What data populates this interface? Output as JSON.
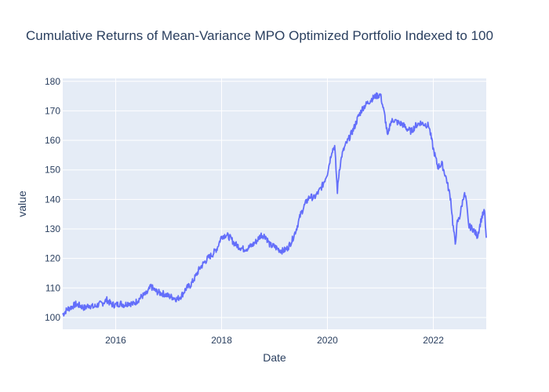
{
  "chart_data": {
    "type": "line",
    "title": "Cumulative Returns of Mean-Variance MPO Optimized Portfolio Indexed to 100",
    "xlabel": "Date",
    "ylabel": "value",
    "xlim": [
      "2015-01-01",
      "2023-01-01"
    ],
    "ylim": [
      96,
      181
    ],
    "x_ticks": [
      "2016",
      "2018",
      "2020",
      "2022"
    ],
    "y_ticks": [
      100,
      110,
      120,
      130,
      140,
      150,
      160,
      170,
      180
    ],
    "grid": true,
    "legend": "none",
    "colors": {
      "plot_bg": "#e5ecf6",
      "grid": "#ffffff",
      "line": "#636efa",
      "text": "#2a3f5f"
    },
    "series": [
      {
        "x": [
          "2015-01-01",
          "2015-02-01",
          "2015-03-01",
          "2015-04-01",
          "2015-05-01",
          "2015-06-01",
          "2015-07-01",
          "2015-08-01",
          "2015-09-01",
          "2015-10-01",
          "2015-11-01",
          "2015-12-01",
          "2016-01-01",
          "2016-02-01",
          "2016-03-01",
          "2016-04-01",
          "2016-05-01",
          "2016-06-01",
          "2016-07-01",
          "2016-08-01",
          "2016-09-01",
          "2016-10-01",
          "2016-11-01",
          "2016-12-01",
          "2017-01-01",
          "2017-02-01",
          "2017-03-01",
          "2017-04-01",
          "2017-05-01",
          "2017-06-01",
          "2017-07-01",
          "2017-08-01",
          "2017-09-01",
          "2017-10-01",
          "2017-11-01",
          "2017-12-01",
          "2018-01-01",
          "2018-02-01",
          "2018-03-01",
          "2018-04-01",
          "2018-05-01",
          "2018-06-01",
          "2018-07-01",
          "2018-08-01",
          "2018-09-01",
          "2018-10-01",
          "2018-11-01",
          "2018-12-01",
          "2019-01-01",
          "2019-02-01",
          "2019-03-01",
          "2019-04-01",
          "2019-05-01",
          "2019-06-01",
          "2019-07-01",
          "2019-08-01",
          "2019-09-01",
          "2019-10-01",
          "2019-11-01",
          "2019-12-01",
          "2020-01-01",
          "2020-02-01",
          "2020-02-20",
          "2020-03-10",
          "2020-03-23",
          "2020-04-10",
          "2020-05-01",
          "2020-06-01",
          "2020-07-01",
          "2020-08-01",
          "2020-09-01",
          "2020-10-01",
          "2020-11-01",
          "2020-12-01",
          "2021-01-01",
          "2021-02-01",
          "2021-02-20",
          "2021-03-10",
          "2021-04-01",
          "2021-05-01",
          "2021-06-01",
          "2021-07-01",
          "2021-08-01",
          "2021-09-01",
          "2021-10-01",
          "2021-11-01",
          "2021-12-01",
          "2022-01-01",
          "2022-02-01",
          "2022-03-01",
          "2022-04-01",
          "2022-05-01",
          "2022-05-15",
          "2022-06-01",
          "2022-06-15",
          "2022-07-01",
          "2022-08-01",
          "2022-08-15",
          "2022-09-01",
          "2022-10-01",
          "2022-11-01",
          "2022-12-01",
          "2022-12-20",
          "2023-01-01"
        ],
        "y": [
          101,
          102.8,
          103.5,
          104.5,
          104,
          103.2,
          104.2,
          103.5,
          104.3,
          104.8,
          106,
          104.5,
          104.2,
          104.8,
          104.3,
          105,
          104.5,
          105.8,
          107.2,
          108,
          110.5,
          109,
          108.3,
          108,
          107.2,
          106.8,
          106.2,
          107.5,
          109.8,
          111,
          113.5,
          116.5,
          118.5,
          120.2,
          121.5,
          123.5,
          127.5,
          128,
          127,
          125,
          124,
          123.2,
          123.5,
          124.5,
          126,
          128,
          127.5,
          124.5,
          124,
          123,
          122.5,
          123.5,
          126,
          130,
          135,
          138.5,
          141,
          140.5,
          142.5,
          145,
          149,
          156.5,
          158,
          142.8,
          150,
          155,
          158,
          161,
          164,
          168,
          171,
          172.5,
          174,
          175,
          175.5,
          168,
          161,
          166,
          167,
          166,
          165.5,
          164,
          163,
          165,
          166,
          165.5,
          165,
          157,
          151,
          152,
          147,
          140,
          132,
          125,
          132,
          134,
          142,
          140,
          131,
          130,
          127.5,
          134,
          136,
          127
        ]
      }
    ]
  }
}
